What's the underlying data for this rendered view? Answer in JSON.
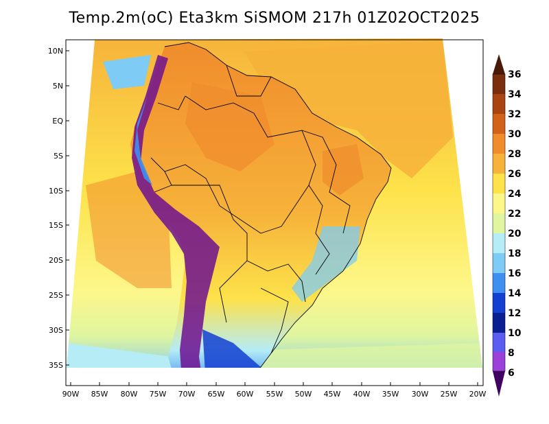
{
  "title": "Temp.2m(oC) Eta3km SiSMOM 217h 01Z02OCT2025",
  "lat_labels": [
    "10N",
    "5N",
    "EQ",
    "5S",
    "10S",
    "15S",
    "20S",
    "25S",
    "30S",
    "35S"
  ],
  "lon_labels": [
    "90W",
    "85W",
    "80W",
    "75W",
    "70W",
    "65W",
    "60W",
    "55W",
    "50W",
    "45W",
    "40W",
    "35W",
    "30W",
    "25W",
    "20W"
  ],
  "colorbar": {
    "labels": [
      "36",
      "34",
      "32",
      "30",
      "28",
      "26",
      "24",
      "22",
      "20",
      "18",
      "16",
      "14",
      "12",
      "10",
      "8",
      "6"
    ],
    "colors": [
      "#4a1a08",
      "#7a2e0e",
      "#a84512",
      "#d2621a",
      "#f08c2c",
      "#f6b23a",
      "#fde24a",
      "#fdf78a",
      "#dff5a0",
      "#b5ecf5",
      "#7ecbf5",
      "#3f8ff0",
      "#1340d0",
      "#0a2090",
      "#5b5cf0",
      "#9b40d8",
      "#6d1090",
      "#3f0060"
    ]
  },
  "regions": {
    "ocean": "ocean",
    "continent": "south-america",
    "andes": "andes-mountains"
  }
}
